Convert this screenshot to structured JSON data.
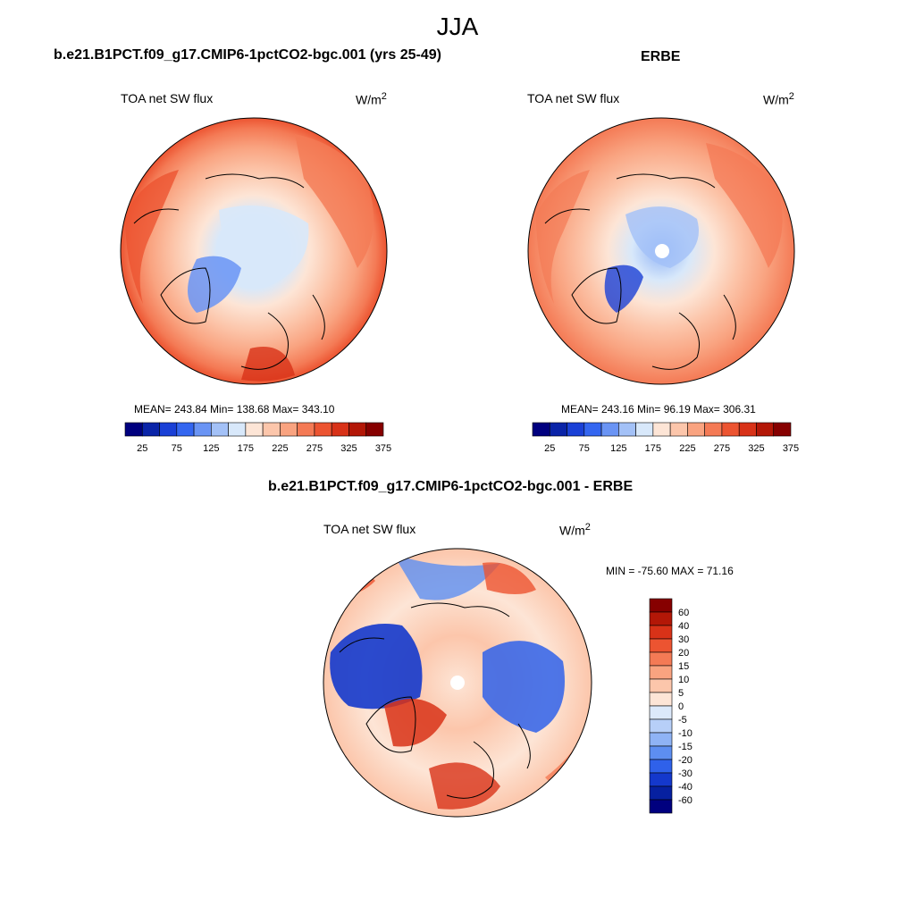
{
  "figure": {
    "season": "JJA"
  },
  "panels": [
    {
      "title": "b.e21.B1PCT.f09_g17.CMIP6-1pctCO2-bgc.001 (yrs 25-49)",
      "variable": "TOA net SW flux",
      "units_base": "W/m",
      "units_exp": "2",
      "stats": "MEAN= 243.84  Min= 138.68  Max= 343.10"
    },
    {
      "title": "ERBE",
      "variable": "TOA net SW flux",
      "units_base": "W/m",
      "units_exp": "2",
      "stats": "MEAN= 243.16  Min=  96.19  Max= 306.31"
    },
    {
      "title": "b.e21.B1PCT.f09_g17.CMIP6-1pctCO2-bgc.001 - ERBE",
      "variable": "TOA net SW flux",
      "units_base": "W/m",
      "units_exp": "2",
      "stats": "MIN = -75.60 MAX =  71.16"
    }
  ],
  "colorbar_abs": {
    "colors": [
      "#00007f",
      "#0a24a8",
      "#1a40d6",
      "#3466f0",
      "#6a94f4",
      "#a3c1f7",
      "#d8e8fa",
      "#fde5d6",
      "#fcc6ab",
      "#f9a380",
      "#f47a55",
      "#ec5431",
      "#d83218",
      "#b31707",
      "#860000"
    ],
    "labels": [
      "25",
      "75",
      "125",
      "175",
      "225",
      "275",
      "325",
      "375"
    ]
  },
  "colorbar_diff": {
    "colors_top_to_bottom": [
      "#860000",
      "#b31707",
      "#d83218",
      "#ec5431",
      "#f47a55",
      "#f9a380",
      "#fcc6ab",
      "#fde5d6",
      "#dce9fa",
      "#b7cff8",
      "#8fb3f5",
      "#5d8ef1",
      "#2f61ea",
      "#1438cc",
      "#0620a0",
      "#00007f"
    ],
    "labels": [
      "60",
      "40",
      "30",
      "20",
      "15",
      "10",
      "5",
      "0",
      "-5",
      "-10",
      "-15",
      "-20",
      "-30",
      "-40",
      "-60"
    ]
  }
}
